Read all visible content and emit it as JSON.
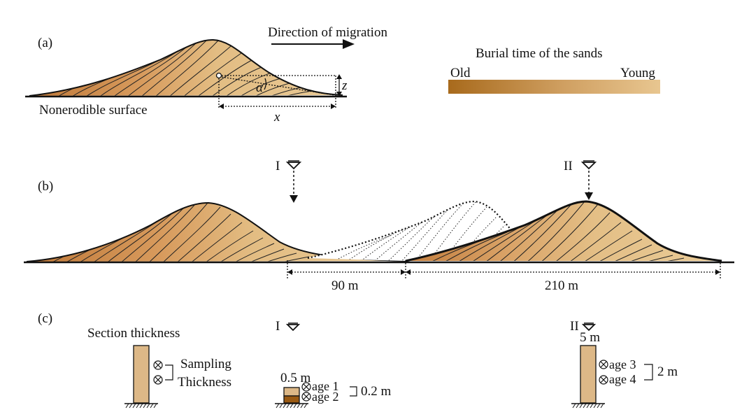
{
  "panels": {
    "a": {
      "label": "(a)",
      "direction": "Direction of migration",
      "surface": "Nonerodible surface",
      "alpha": "α",
      "z": "z",
      "x": "x"
    },
    "legend": {
      "title": "Burial time of the sands",
      "old": "Old",
      "young": "Young",
      "color_old": "#a86a1c",
      "color_young": "#e8c690"
    },
    "b": {
      "label": "(b)",
      "site_1": "I",
      "site_2": "II",
      "dist_1": "90 m",
      "dist_2": "210 m"
    },
    "c": {
      "label": "(c)",
      "section_thickness": "Section thickness",
      "sampling": "Sampling",
      "thickness": "Thickness",
      "site_1": "I",
      "site_2": "II",
      "thick_1": "0.5 m",
      "thick_2": "5 m",
      "age_1": "age 1",
      "age_2": "age 2",
      "age_3": "age 3",
      "age_4": "age 4",
      "gap_1": "0.2 m",
      "gap_2": "2 m"
    }
  },
  "colors": {
    "sand_light": "#e6c592",
    "sand_dark": "#b5722a",
    "outline": "#1a1a1a"
  }
}
